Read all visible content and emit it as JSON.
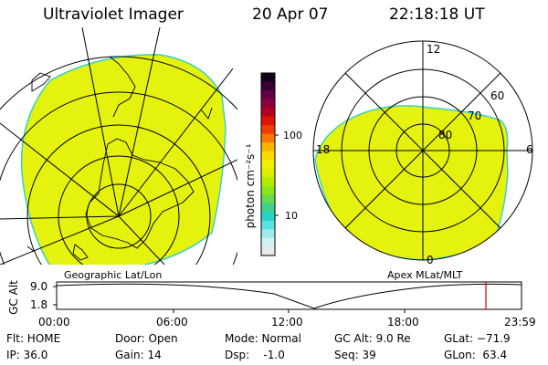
{
  "header": {
    "instrument": "Ultraviolet Imager",
    "date": "20 Apr 07",
    "time": "22:18:18 UT"
  },
  "colorbar": {
    "unit_label": "photon cm⁻²s⁻¹",
    "ticks": [
      "100",
      "10"
    ],
    "colors": [
      "#14001e",
      "#3c0032",
      "#640046",
      "#8c003c",
      "#b4001e",
      "#dc1400",
      "#f03c00",
      "#f87800",
      "#fcb400",
      "#f8dc00",
      "#f0f000",
      "#d8f000",
      "#b4ec00",
      "#8ce61e",
      "#64dc50",
      "#3cd28c",
      "#28d2c8",
      "#5ae1e6",
      "#a0ebf0",
      "#d2f3f5",
      "#e6eaea"
    ]
  },
  "maps": {
    "left_label": "Geographic Lat/Lon",
    "right_label": "Apex MLat/MLT",
    "fill_color": "#e4f20e",
    "edge_color": "#3ad1c8",
    "polar_labels": {
      "top": "12",
      "left": "18",
      "right": "6",
      "bottom": "0",
      "lat60": "60",
      "lat70": "70",
      "lat80": "80"
    }
  },
  "altitude_track": {
    "ylabel": "GC Alt",
    "yticks": [
      "9.0",
      "1.8"
    ],
    "xticks": [
      "00:00",
      "06:00",
      "12:00",
      "18:00",
      "23:59"
    ],
    "current_marker_color": "#d10000"
  },
  "footer": {
    "flt": "Flt: HOME",
    "ip": "IP: 36.0",
    "door": "Door: Open",
    "gain": "Gain: 14",
    "mode": "Mode: Normal",
    "dsp": "Dsp:    -1.0",
    "gcalt": "GC Alt: 9.0 Re",
    "seq": "Seq: 39",
    "glat": "GLat: −71.9",
    "glon": "GLon:  63.4"
  }
}
